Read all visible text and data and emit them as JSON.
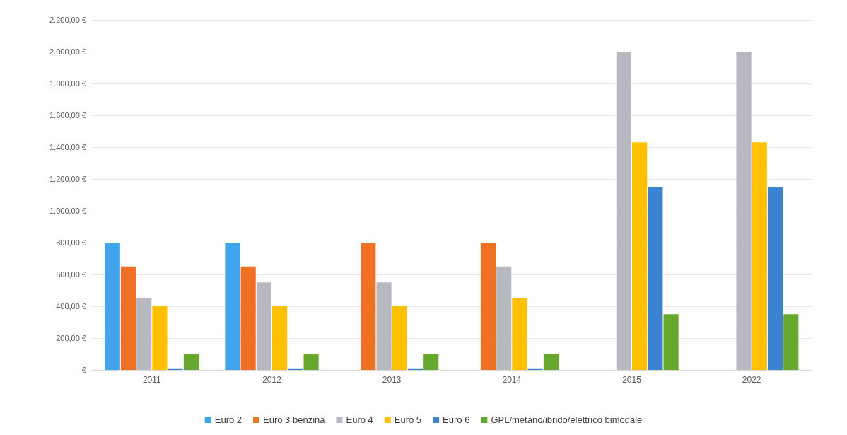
{
  "chart_data": {
    "type": "bar",
    "categories": [
      "2011",
      "2012",
      "2013",
      "2014",
      "2015",
      "2022"
    ],
    "series": [
      {
        "name": "Euro 2",
        "color": "#41a5ee",
        "values": [
          800,
          800,
          null,
          null,
          null,
          null
        ]
      },
      {
        "name": "Euro 3 benzina",
        "color": "#f07024",
        "values": [
          650,
          650,
          800,
          800,
          null,
          null
        ]
      },
      {
        "name": "Euro 4",
        "color": "#b8b8c0",
        "values": [
          450,
          550,
          550,
          650,
          2000,
          2000
        ]
      },
      {
        "name": "Euro 5",
        "color": "#ffc000",
        "values": [
          400,
          400,
          400,
          450,
          1430,
          1430
        ]
      },
      {
        "name": "Euro 6",
        "color": "#3b82d0",
        "values": [
          10,
          10,
          10,
          10,
          1150,
          1150
        ]
      },
      {
        "name": "GPL/metano/ibrido/elettrico bimodale",
        "color": "#66a82e",
        "values": [
          100,
          100,
          100,
          100,
          350,
          350
        ]
      }
    ],
    "ylim": [
      0,
      2200
    ],
    "yticks": [
      {
        "value": 0,
        "label": "-  €"
      },
      {
        "value": 200,
        "label": "200,00 €"
      },
      {
        "value": 400,
        "label": "400,00 €"
      },
      {
        "value": 600,
        "label": "600,00 €"
      },
      {
        "value": 800,
        "label": "800,00 €"
      },
      {
        "value": 1000,
        "label": "1.000,00 €"
      },
      {
        "value": 1200,
        "label": "1.200,00 €"
      },
      {
        "value": 1400,
        "label": "1.400,00 €"
      },
      {
        "value": 1600,
        "label": "1.600,00 €"
      },
      {
        "value": 1800,
        "label": "1.800,00 €"
      },
      {
        "value": 2000,
        "label": "2.000,00 €"
      },
      {
        "value": 2200,
        "label": "2.200,00 €"
      }
    ],
    "grid": "y",
    "legend": "bottom"
  }
}
